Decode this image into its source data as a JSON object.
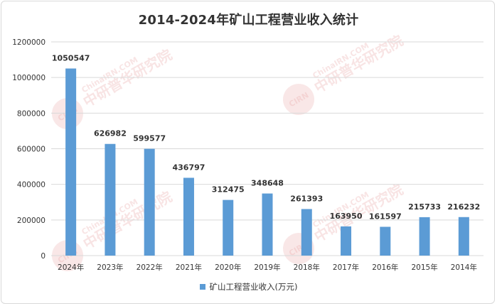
{
  "title": "2014-2024年矿山工程营业收入统计",
  "colors": {
    "bar": "#5b9bd5",
    "grid": "#d9d9d9",
    "watermark": "#e8a0a0"
  },
  "watermark": {
    "brand": "中研普华研究院",
    "site": "ChinaIRN.COM",
    "logo": "CIRN"
  },
  "chart_data": {
    "type": "bar",
    "categories": [
      "2024年",
      "2023年",
      "2022年",
      "2021年",
      "2020年",
      "2019年",
      "2018年",
      "2017年",
      "2016年",
      "2015年",
      "2014年"
    ],
    "series": [
      {
        "name": "矿山工程营业收入(万元)",
        "values": [
          1050547,
          626982,
          599577,
          436797,
          312475,
          348648,
          261393,
          163950,
          161597,
          215733,
          216232
        ]
      }
    ],
    "ylim": [
      0,
      1200000
    ],
    "yticks": [
      0,
      200000,
      400000,
      600000,
      800000,
      1000000,
      1200000
    ],
    "grid": true,
    "legend": "bottom",
    "data_labels": true
  }
}
